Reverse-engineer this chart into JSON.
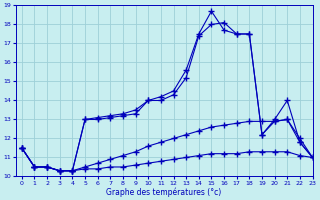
{
  "xlabel": "Graphe des températures (°c)",
  "xlim": [
    -0.5,
    23
  ],
  "ylim": [
    10,
    19
  ],
  "yticks": [
    10,
    11,
    12,
    13,
    14,
    15,
    16,
    17,
    18,
    19
  ],
  "xticks": [
    0,
    1,
    2,
    3,
    4,
    5,
    6,
    7,
    8,
    9,
    10,
    11,
    12,
    13,
    14,
    15,
    16,
    17,
    18,
    19,
    20,
    21,
    22,
    23
  ],
  "bg_color": "#c8eef0",
  "grid_color": "#9dd0d8",
  "line_color": "#0000bb",
  "line1_y": [
    11.5,
    10.5,
    10.5,
    10.3,
    10.3,
    13.0,
    13.1,
    13.2,
    13.3,
    13.5,
    14.0,
    14.2,
    14.5,
    15.6,
    17.5,
    18.7,
    17.7,
    17.5,
    17.5,
    12.2,
    13.0,
    14.0,
    11.8,
    11.0
  ],
  "line2_y": [
    11.5,
    10.5,
    10.5,
    10.3,
    10.3,
    13.0,
    13.0,
    13.1,
    13.2,
    13.3,
    14.0,
    14.0,
    14.3,
    15.2,
    17.4,
    18.0,
    18.1,
    17.5,
    17.5,
    12.2,
    12.9,
    13.0,
    11.8,
    11.0
  ],
  "line3_y": [
    11.5,
    10.5,
    10.5,
    10.3,
    10.3,
    10.5,
    10.7,
    10.9,
    11.1,
    11.3,
    11.6,
    11.8,
    12.0,
    12.2,
    12.4,
    12.6,
    12.7,
    12.8,
    12.9,
    12.9,
    12.9,
    13.0,
    12.0,
    11.0
  ],
  "line4_y": [
    11.5,
    10.5,
    10.5,
    10.3,
    10.3,
    10.4,
    10.4,
    10.5,
    10.5,
    10.6,
    10.7,
    10.8,
    10.9,
    11.0,
    11.1,
    11.2,
    11.2,
    11.2,
    11.3,
    11.3,
    11.3,
    11.3,
    11.1,
    11.0
  ]
}
